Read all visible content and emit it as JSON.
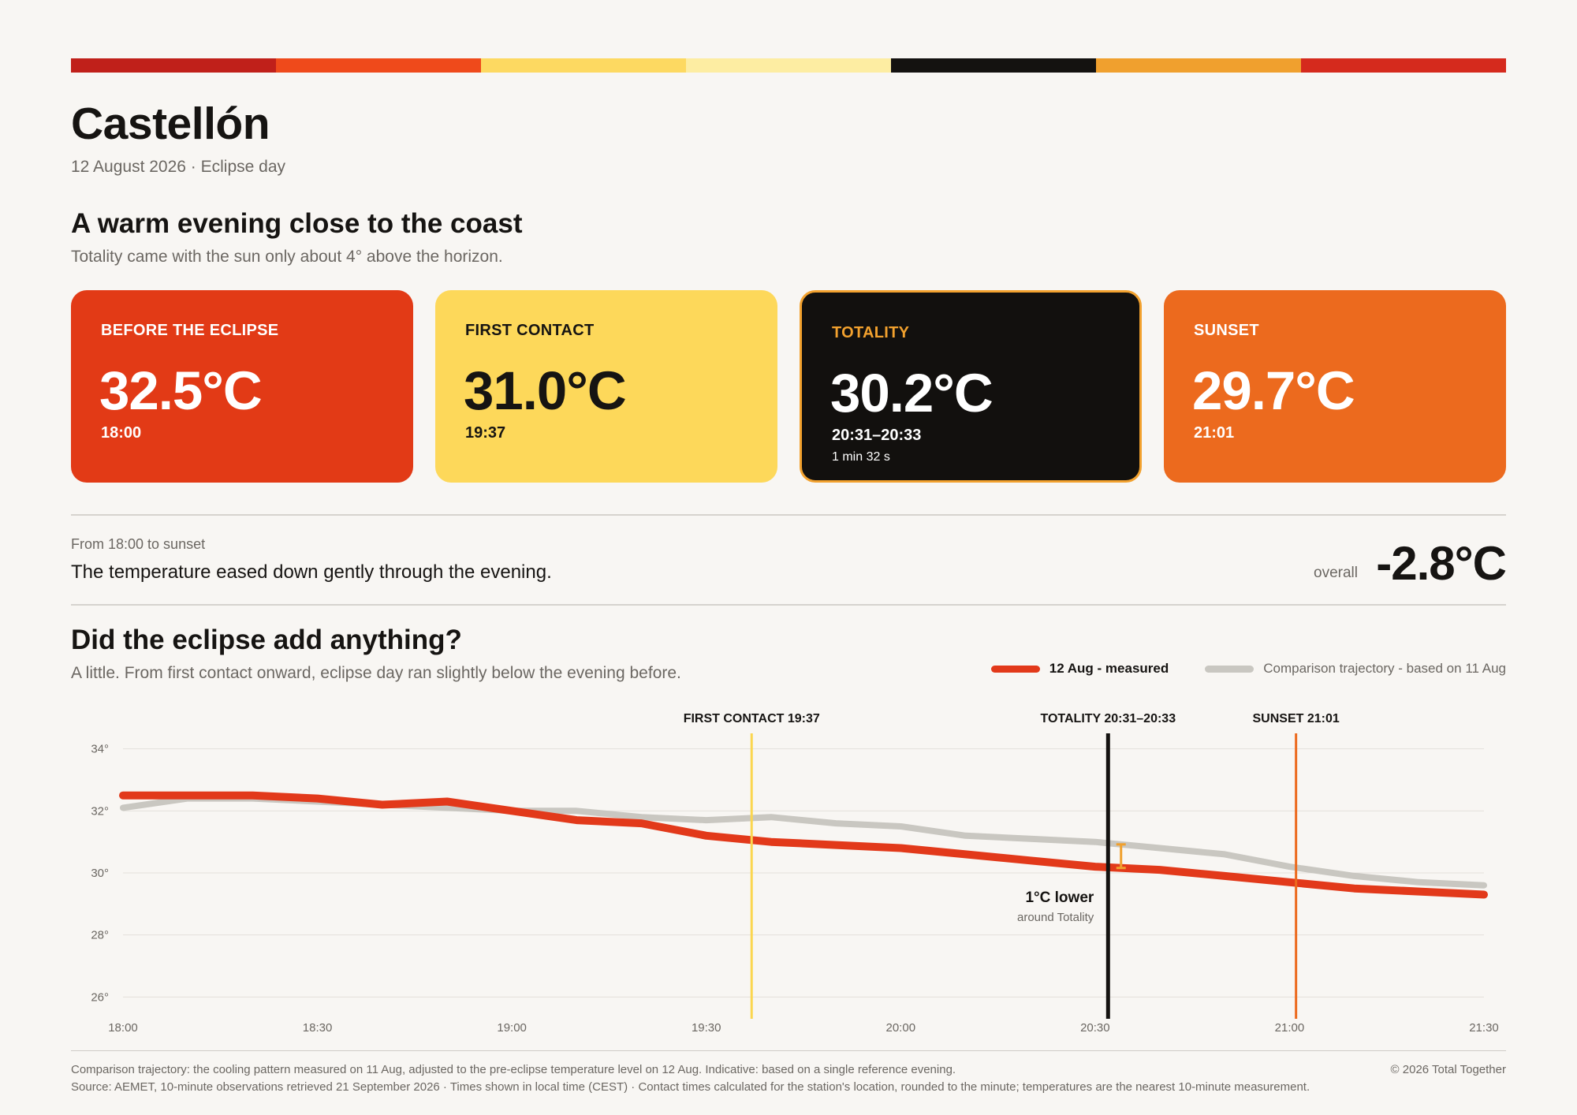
{
  "stripe_colors": [
    "#c0201a",
    "#ef4a1b",
    "#fdd961",
    "#fdeda2",
    "#141210",
    "#f0a02e",
    "#d52a1d"
  ],
  "header": {
    "city": "Castellón",
    "date_line": "12 August 2026 · Eclipse day"
  },
  "section1": {
    "title": "A warm evening close to the coast",
    "subtitle": "Totality came with the sun only about 4° above the horizon."
  },
  "cards": [
    {
      "label": "BEFORE THE ECLIPSE",
      "value": "32.5°C",
      "time": "18:00",
      "duration": "",
      "bg": "#e23a16",
      "fg": "#ffffff",
      "label_color": "#ffffff"
    },
    {
      "label": "FIRST CONTACT",
      "value": "31.0°C",
      "time": "19:37",
      "duration": "",
      "bg": "#fdd85a",
      "fg": "#161412",
      "label_color": "#161412"
    },
    {
      "label": "TOTALITY",
      "value": "30.2°C",
      "time": "20:31–20:33",
      "duration": "1 min 32 s",
      "bg": "#12100e",
      "fg": "#ffffff",
      "label_color": "#f2a12e",
      "border": "#f2a12e"
    },
    {
      "label": "SUNSET",
      "value": "29.7°C",
      "time": "21:01",
      "duration": "",
      "bg": "#ec6a1e",
      "fg": "#ffffff",
      "label_color": "#ffffff"
    }
  ],
  "summary": {
    "from_label": "From 18:00 to sunset",
    "text": "The temperature eased down gently through the evening.",
    "overall_label": "overall",
    "overall_value": "-2.8°C"
  },
  "section2": {
    "title": "Did the eclipse add anything?",
    "subtitle": "A little. From first contact onward, eclipse day ran slightly below the evening before."
  },
  "legend": {
    "measured": "12 Aug - measured",
    "comparison": "Comparison trajectory - based on 11 Aug"
  },
  "chart_data": {
    "type": "line",
    "x": [
      "18:00",
      "18:10",
      "18:20",
      "18:30",
      "18:40",
      "18:50",
      "19:00",
      "19:10",
      "19:20",
      "19:30",
      "19:40",
      "19:50",
      "20:00",
      "20:10",
      "20:20",
      "20:30",
      "20:40",
      "20:50",
      "21:00",
      "21:10",
      "21:20",
      "21:30"
    ],
    "x_ticks": [
      "18:00",
      "18:30",
      "19:00",
      "19:30",
      "20:00",
      "20:30",
      "21:00",
      "21:30"
    ],
    "y_ticks": [
      34,
      32,
      30,
      28,
      26
    ],
    "y_tick_suffix": "°",
    "ylim": [
      25.5,
      34.5
    ],
    "series": [
      {
        "name": "12 Aug - measured",
        "color": "#e2391a",
        "values": [
          32.5,
          32.5,
          32.5,
          32.4,
          32.2,
          32.3,
          32.0,
          31.7,
          31.6,
          31.2,
          31.0,
          30.9,
          30.8,
          30.6,
          30.4,
          30.2,
          30.1,
          29.9,
          29.7,
          29.5,
          29.4,
          29.3
        ]
      },
      {
        "name": "Comparison trajectory - based on 11 Aug",
        "color": "#c9c7c1",
        "values": [
          32.1,
          32.4,
          32.4,
          32.3,
          32.2,
          32.1,
          32.0,
          32.0,
          31.8,
          31.7,
          31.8,
          31.6,
          31.5,
          31.2,
          31.1,
          31.0,
          30.8,
          30.6,
          30.2,
          29.9,
          29.7,
          29.6
        ]
      }
    ],
    "events": [
      {
        "label": "FIRST CONTACT",
        "time": "19:37",
        "x": "19:37",
        "color": "#fbd64f"
      },
      {
        "label": "TOTALITY",
        "time": "20:31–20:33",
        "x": "20:32",
        "color": "#141210"
      },
      {
        "label": "SUNSET",
        "time": "21:01",
        "x": "21:01",
        "color": "#ec6a1e"
      }
    ],
    "annotation": {
      "x": "20:34",
      "label": "1°C lower",
      "sublabel": "around Totality",
      "color": "#f0a02e"
    }
  },
  "footer": {
    "line1": "Comparison trajectory: the cooling pattern measured on 11 Aug, adjusted to the pre-eclipse temperature level on 12 Aug. Indicative: based on a single reference evening.",
    "line2": "Source: AEMET, 10-minute observations retrieved 21 September 2026 · Times shown in local time (CEST) · Contact times calculated for the station's location, rounded to the minute; temperatures are the nearest 10-minute measurement.",
    "copyright": "© 2026 Total Together"
  }
}
